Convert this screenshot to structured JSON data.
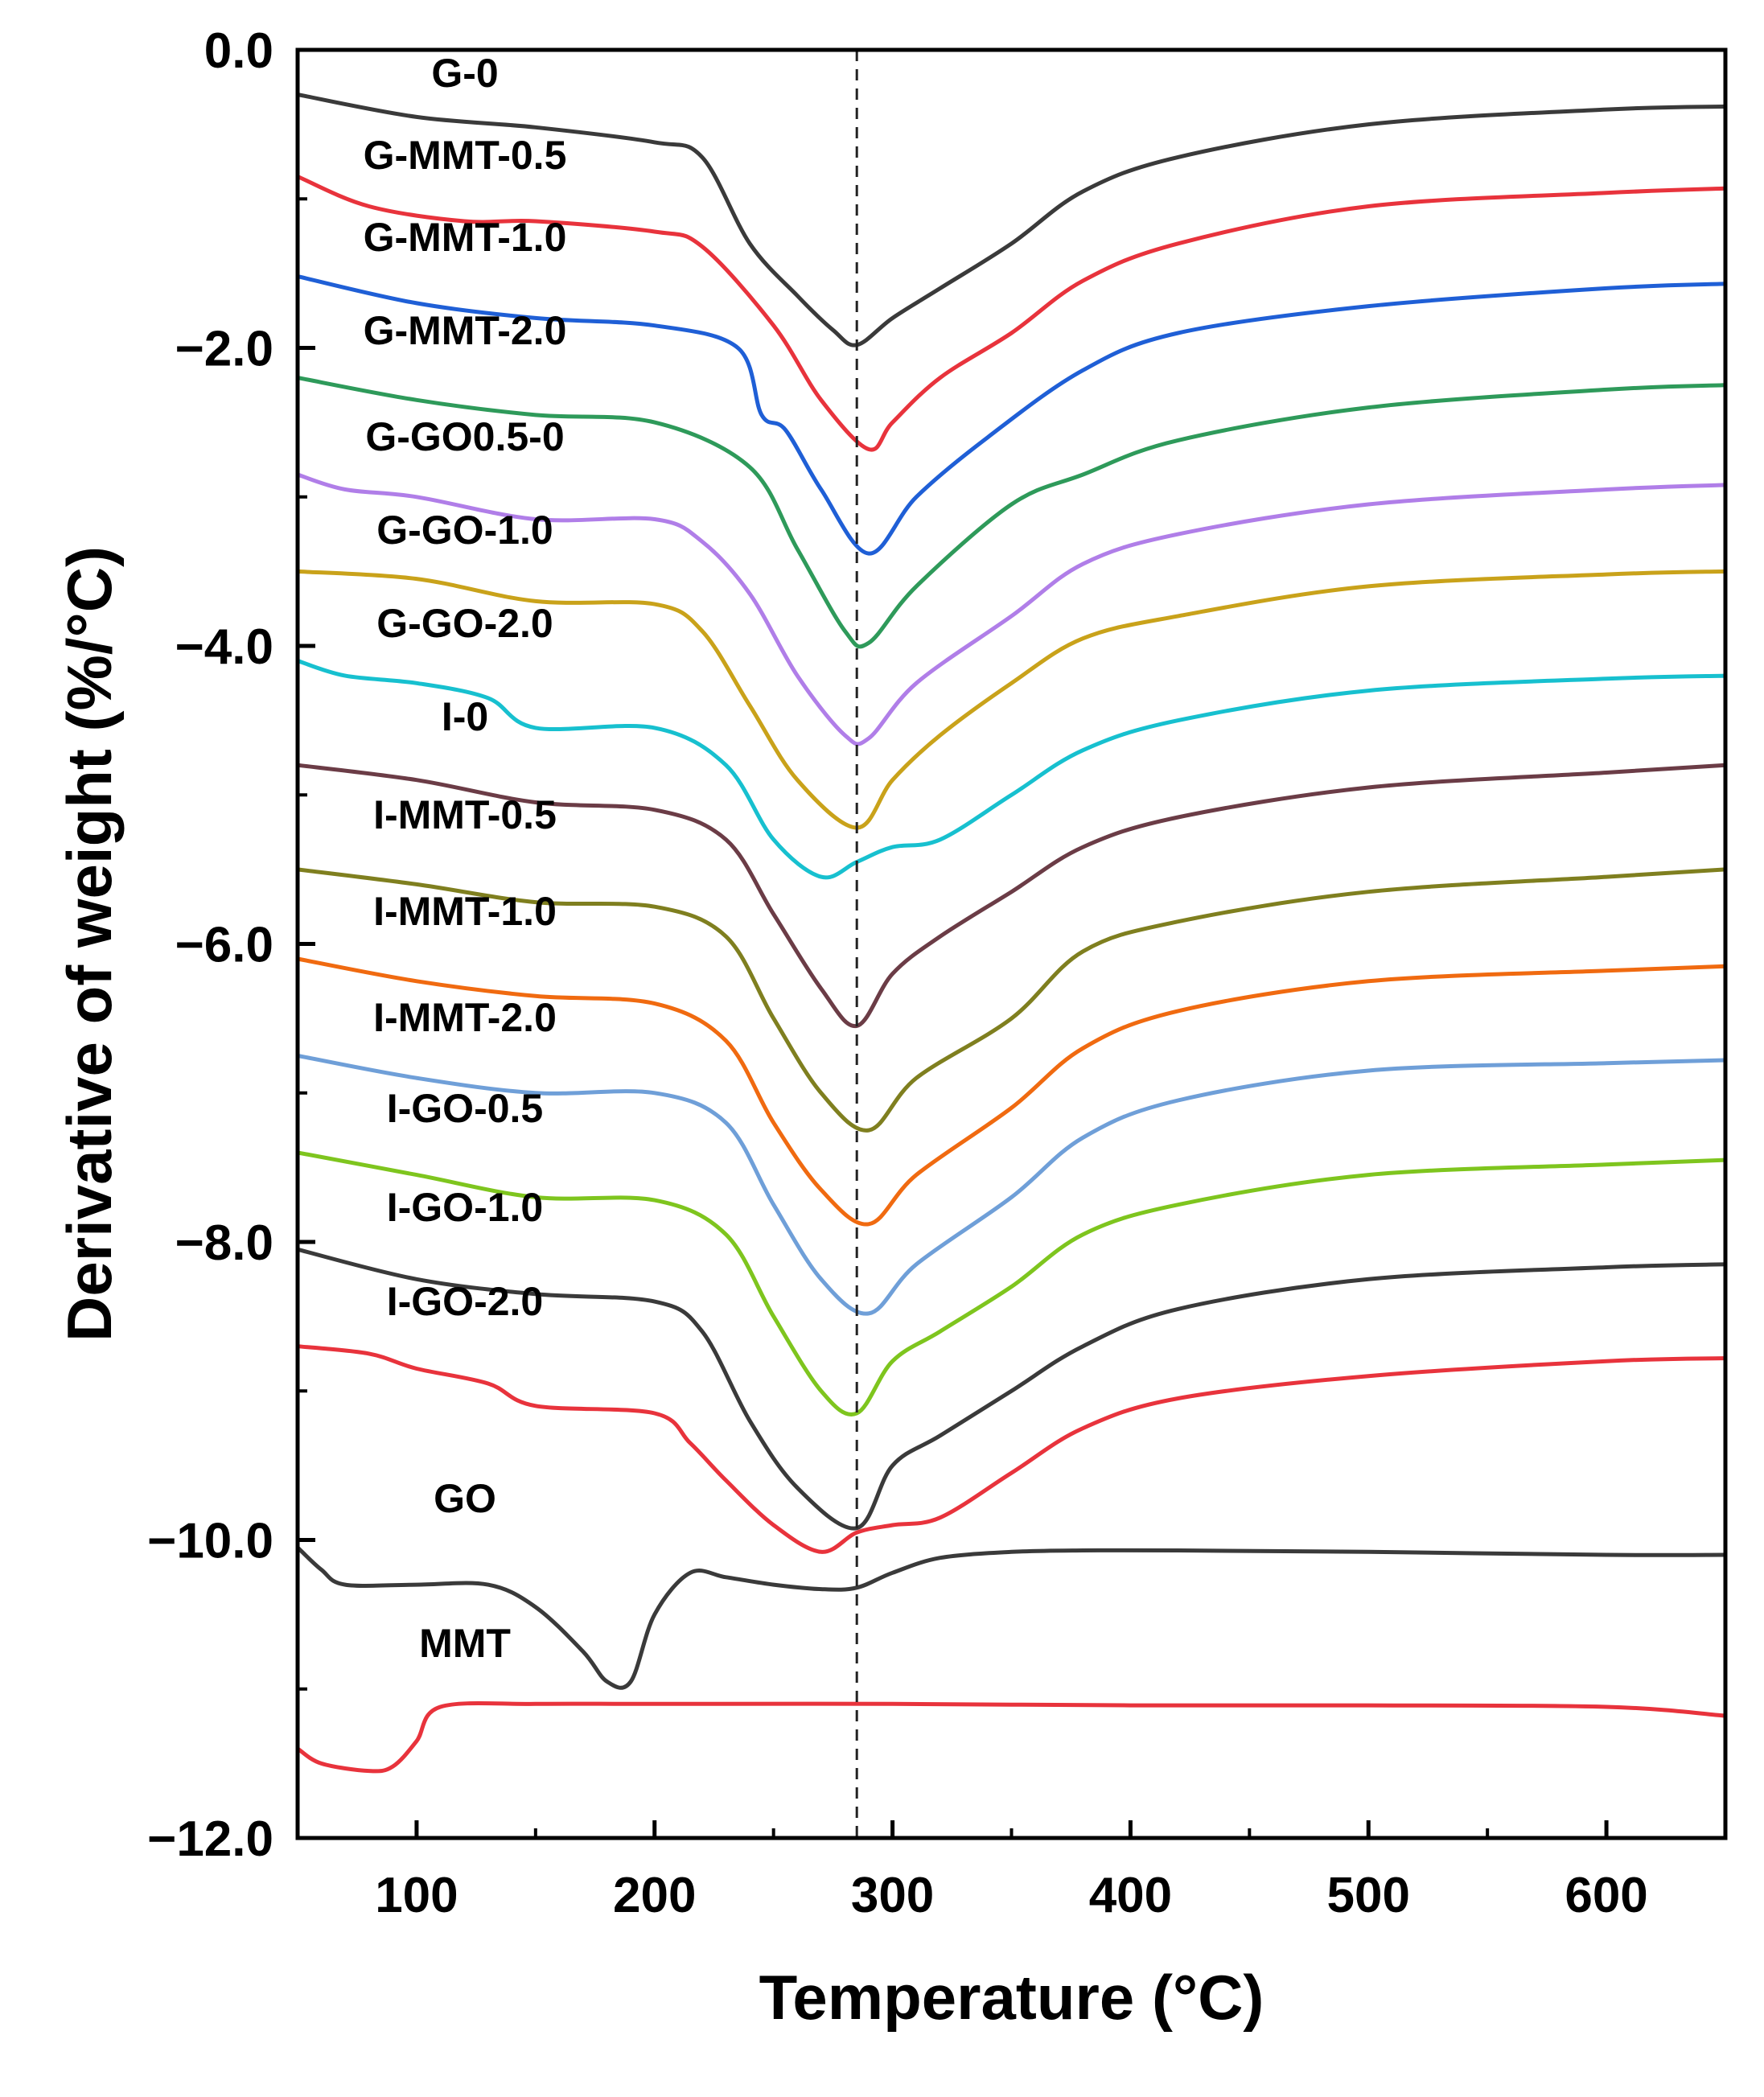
{
  "chart_data": {
    "type": "line",
    "title": "",
    "xlabel": "Temperature (°C)",
    "ylabel": "Derivative of weight (%/°C)",
    "xlim": [
      50,
      650
    ],
    "ylim": [
      -12.0,
      0.0
    ],
    "xticks": [
      100,
      200,
      300,
      400,
      500,
      600
    ],
    "xtick_labels": [
      "100",
      "200",
      "300",
      "400",
      "500",
      "600"
    ],
    "yticks": [
      0,
      -2,
      -4,
      -6,
      -8,
      -10,
      -12
    ],
    "ytick_labels": [
      "0.0",
      "−2.0",
      "−4.0",
      "−6.0",
      "−8.0",
      "−10.0",
      "−12.0"
    ],
    "grid": false,
    "legend": "none",
    "reference_line": {
      "x": 285,
      "style": "dashed"
    },
    "series": [
      {
        "name": "G-0",
        "color": "#3a3a3a",
        "x": [
          50,
          100,
          150,
          200,
          220,
          240,
          260,
          275,
          285,
          300,
          320,
          350,
          380,
          420,
          500,
          600,
          650
        ],
        "y": [
          -0.3,
          -0.45,
          -0.52,
          -0.62,
          -0.72,
          -1.3,
          -1.65,
          -1.88,
          -1.98,
          -1.8,
          -1.6,
          -1.3,
          -0.95,
          -0.72,
          -0.5,
          -0.4,
          -0.38
        ]
      },
      {
        "name": "G-MMT-0.5",
        "color": "#e8333c",
        "x": [
          50,
          80,
          120,
          150,
          200,
          220,
          250,
          270,
          290,
          300,
          320,
          350,
          380,
          420,
          500,
          600,
          650
        ],
        "y": [
          -0.85,
          -1.05,
          -1.15,
          -1.15,
          -1.22,
          -1.32,
          -1.85,
          -2.35,
          -2.68,
          -2.5,
          -2.2,
          -1.9,
          -1.55,
          -1.3,
          -1.05,
          -0.96,
          -0.93
        ]
      },
      {
        "name": "G-MMT-1.0",
        "color": "#1f5fd6",
        "x": [
          50,
          100,
          150,
          200,
          235,
          245,
          255,
          270,
          290,
          310,
          340,
          380,
          420,
          500,
          600,
          650
        ],
        "y": [
          -1.52,
          -1.7,
          -1.8,
          -1.85,
          -2.0,
          -2.45,
          -2.55,
          -2.95,
          -3.38,
          -3.0,
          -2.6,
          -2.15,
          -1.9,
          -1.72,
          -1.6,
          -1.57
        ]
      },
      {
        "name": "G-MMT-2.0",
        "color": "#2e9a5a",
        "x": [
          50,
          100,
          150,
          200,
          240,
          260,
          280,
          290,
          310,
          350,
          380,
          420,
          500,
          600,
          650
        ],
        "y": [
          -2.2,
          -2.35,
          -2.45,
          -2.5,
          -2.8,
          -3.35,
          -3.9,
          -3.98,
          -3.6,
          -3.05,
          -2.85,
          -2.62,
          -2.4,
          -2.28,
          -2.25
        ]
      },
      {
        "name": "G-GO0.5-0",
        "color": "#b07ee8",
        "x": [
          50,
          70,
          100,
          150,
          200,
          220,
          240,
          260,
          280,
          290,
          310,
          350,
          380,
          420,
          500,
          600,
          650
        ],
        "y": [
          -2.85,
          -2.95,
          -3.0,
          -3.15,
          -3.15,
          -3.3,
          -3.65,
          -4.2,
          -4.6,
          -4.62,
          -4.25,
          -3.8,
          -3.45,
          -3.25,
          -3.05,
          -2.95,
          -2.92
        ]
      },
      {
        "name": "G-GO-1.0",
        "color": "#c9a21a",
        "x": [
          50,
          100,
          150,
          200,
          220,
          240,
          260,
          285,
          300,
          320,
          350,
          380,
          420,
          500,
          600,
          650
        ],
        "y": [
          -3.5,
          -3.55,
          -3.7,
          -3.72,
          -3.9,
          -4.4,
          -4.9,
          -5.22,
          -4.9,
          -4.6,
          -4.25,
          -3.95,
          -3.8,
          -3.6,
          -3.52,
          -3.5
        ]
      },
      {
        "name": "G-GO-2.0",
        "color": "#17c0cf",
        "x": [
          50,
          70,
          100,
          130,
          150,
          200,
          230,
          250,
          270,
          285,
          300,
          320,
          350,
          380,
          420,
          500,
          600,
          650
        ],
        "y": [
          -4.1,
          -4.2,
          -4.25,
          -4.35,
          -4.55,
          -4.55,
          -4.8,
          -5.3,
          -5.55,
          -5.45,
          -5.35,
          -5.3,
          -5.0,
          -4.7,
          -4.5,
          -4.3,
          -4.22,
          -4.2
        ]
      },
      {
        "name": "I-0",
        "color": "#6b3c46",
        "x": [
          50,
          100,
          150,
          200,
          230,
          250,
          270,
          285,
          300,
          320,
          350,
          380,
          420,
          500,
          600,
          650
        ],
        "y": [
          -4.8,
          -4.9,
          -5.05,
          -5.1,
          -5.3,
          -5.8,
          -6.3,
          -6.55,
          -6.2,
          -5.95,
          -5.65,
          -5.35,
          -5.15,
          -4.95,
          -4.85,
          -4.8
        ]
      },
      {
        "name": "I-MMT-0.5",
        "color": "#7f7f1f",
        "x": [
          50,
          100,
          150,
          200,
          230,
          250,
          270,
          290,
          310,
          350,
          380,
          420,
          500,
          600,
          650
        ],
        "y": [
          -5.5,
          -5.6,
          -5.72,
          -5.75,
          -5.95,
          -6.5,
          -7.0,
          -7.25,
          -6.9,
          -6.5,
          -6.05,
          -5.85,
          -5.65,
          -5.55,
          -5.5
        ]
      },
      {
        "name": "I-MMT-1.0",
        "color": "#f06a10",
        "x": [
          50,
          100,
          150,
          200,
          230,
          250,
          270,
          290,
          310,
          350,
          380,
          420,
          500,
          600,
          650
        ],
        "y": [
          -6.1,
          -6.25,
          -6.35,
          -6.4,
          -6.65,
          -7.2,
          -7.65,
          -7.88,
          -7.55,
          -7.1,
          -6.7,
          -6.45,
          -6.25,
          -6.18,
          -6.15
        ]
      },
      {
        "name": "I-MMT-2.0",
        "color": "#6f9fd8",
        "x": [
          50,
          100,
          150,
          200,
          230,
          250,
          270,
          290,
          310,
          350,
          380,
          420,
          500,
          600,
          650
        ],
        "y": [
          -6.75,
          -6.9,
          -7.0,
          -7.0,
          -7.2,
          -7.75,
          -8.25,
          -8.48,
          -8.15,
          -7.7,
          -7.3,
          -7.05,
          -6.85,
          -6.8,
          -6.78
        ]
      },
      {
        "name": "I-GO-0.5",
        "color": "#7ec51e",
        "x": [
          50,
          100,
          150,
          200,
          230,
          250,
          270,
          285,
          300,
          320,
          350,
          380,
          420,
          500,
          600,
          650
        ],
        "y": [
          -7.4,
          -7.55,
          -7.7,
          -7.72,
          -7.95,
          -8.5,
          -9.0,
          -9.15,
          -8.8,
          -8.6,
          -8.3,
          -7.95,
          -7.75,
          -7.55,
          -7.48,
          -7.45
        ]
      },
      {
        "name": "I-GO-1.0",
        "color": "#3a3a3a",
        "x": [
          50,
          100,
          150,
          200,
          220,
          240,
          260,
          285,
          300,
          320,
          350,
          380,
          420,
          500,
          600,
          650
        ],
        "y": [
          -8.05,
          -8.25,
          -8.35,
          -8.4,
          -8.6,
          -9.2,
          -9.65,
          -9.92,
          -9.5,
          -9.3,
          -9.0,
          -8.7,
          -8.45,
          -8.25,
          -8.17,
          -8.15
        ]
      },
      {
        "name": "I-GO-2.0",
        "color": "#e8333c",
        "x": [
          50,
          80,
          100,
          130,
          150,
          200,
          215,
          230,
          250,
          270,
          285,
          300,
          320,
          350,
          380,
          420,
          500,
          600,
          650
        ],
        "y": [
          -8.7,
          -8.75,
          -8.85,
          -8.95,
          -9.1,
          -9.15,
          -9.35,
          -9.6,
          -9.9,
          -10.08,
          -9.95,
          -9.9,
          -9.85,
          -9.55,
          -9.25,
          -9.05,
          -8.9,
          -8.8,
          -8.78
        ]
      },
      {
        "name": "GO",
        "color": "#3a3a3a",
        "x": [
          50,
          60,
          70,
          100,
          130,
          150,
          170,
          180,
          190,
          200,
          215,
          230,
          250,
          270,
          285,
          300,
          320,
          350,
          380,
          420,
          500,
          600,
          650
        ],
        "y": [
          -10.05,
          -10.2,
          -10.3,
          -10.3,
          -10.3,
          -10.45,
          -10.75,
          -10.95,
          -10.95,
          -10.5,
          -10.22,
          -10.25,
          -10.3,
          -10.33,
          -10.32,
          -10.22,
          -10.12,
          -10.08,
          -10.07,
          -10.07,
          -10.08,
          -10.1,
          -10.1
        ]
      },
      {
        "name": "MMT",
        "color": "#e8333c",
        "x": [
          50,
          60,
          80,
          90,
          100,
          110,
          150,
          200,
          300,
          400,
          500,
          600,
          650
        ],
        "y": [
          -11.4,
          -11.5,
          -11.55,
          -11.52,
          -11.35,
          -11.12,
          -11.1,
          -11.1,
          -11.1,
          -11.11,
          -11.11,
          -11.12,
          -11.18
        ]
      }
    ]
  }
}
